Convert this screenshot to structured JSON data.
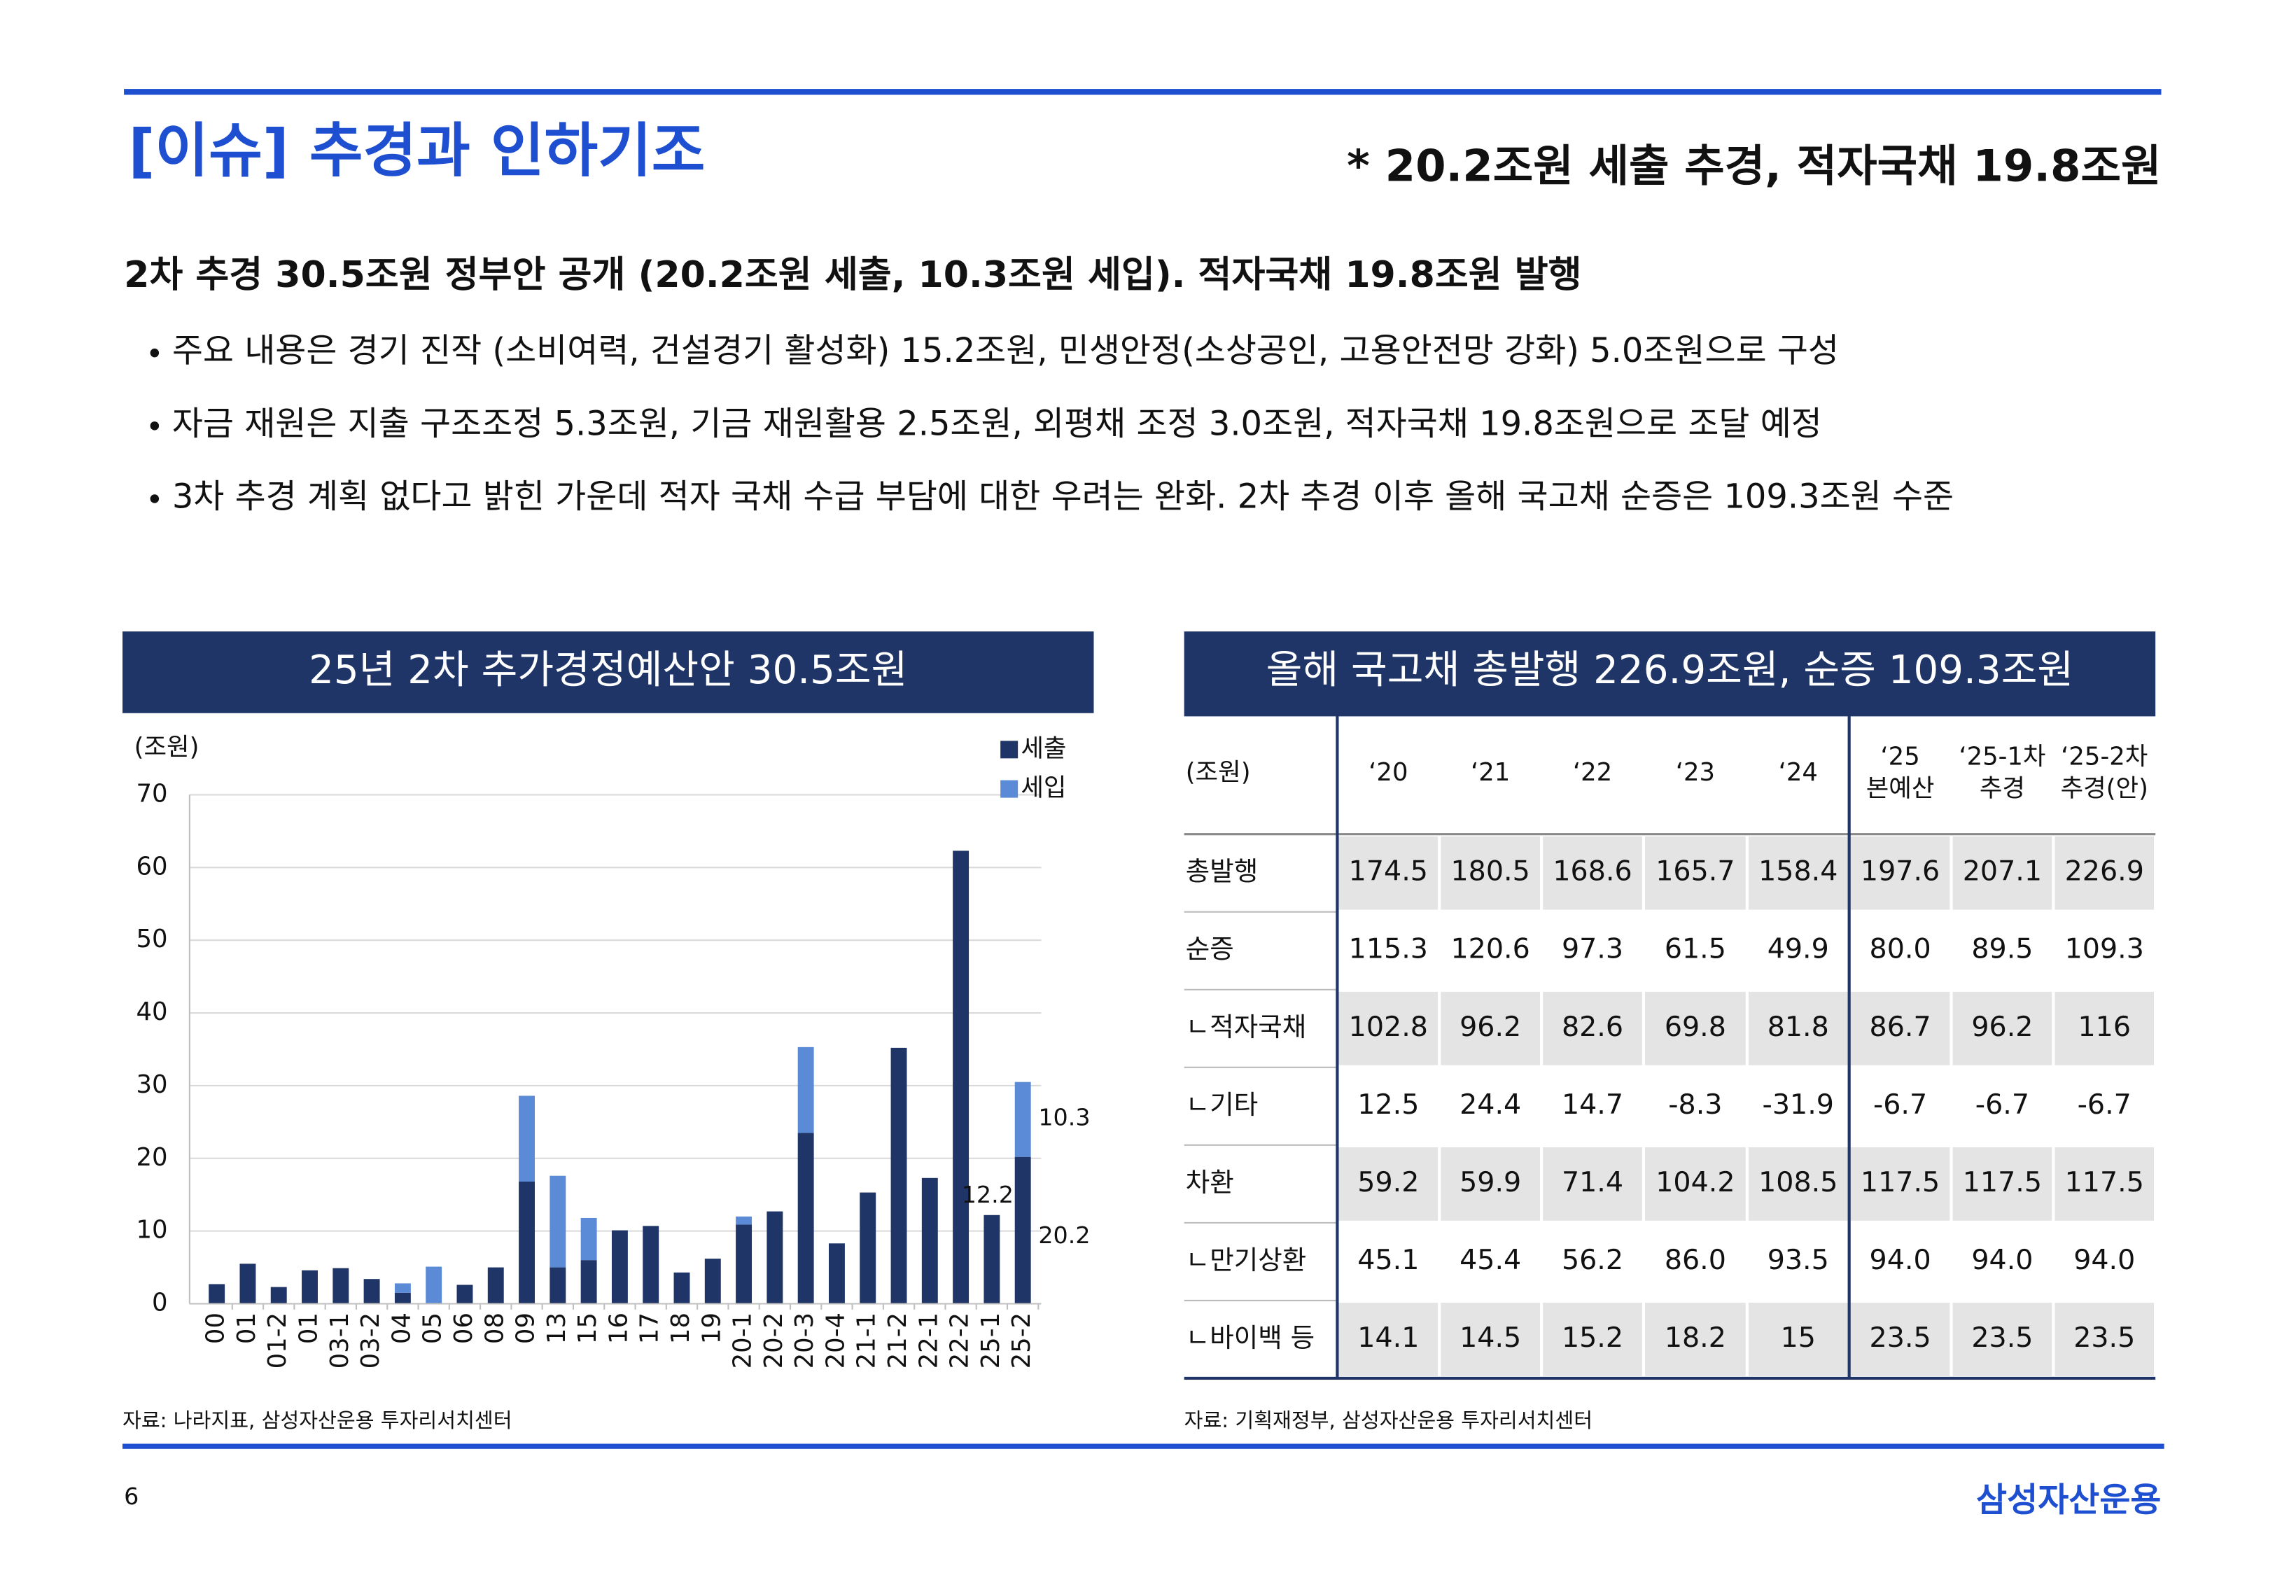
{
  "header": {
    "title": "[이슈] 추경과 인하기조",
    "note": "* 20.2조원 세출 추경, 적자국채 19.8조원"
  },
  "headline": "2차 추경 30.5조원 정부안 공개 (20.2조원 세출, 10.3조원 세입). 적자국채 19.8조원 발행",
  "bullets": [
    "주요 내용은 경기 진작 (소비여력, 건설경기 활성화) 15.2조원, 민생안정(소상공인, 고용안전망 강화) 5.0조원으로 구성",
    "자금 재원은 지출 구조조정 5.3조원, 기금 재원활용 2.5조원, 외평채 조정 3.0조원, 적자국채 19.8조원으로 조달 예정",
    "3차 추경 계획 없다고 밝힌 가운데 적자 국채 수급 부담에 대한 우려는 완화. 2차 추경 이후 올해 국고채 순증은 109.3조원 수준"
  ],
  "chart_data": {
    "type": "bar",
    "stacked": true,
    "title": "25년 2차 추가경정예산안 30.5조원",
    "y_label": "(조원)",
    "categories": [
      "00",
      "01",
      "01-2",
      "01",
      "03-1",
      "03-2",
      "04",
      "05",
      "06",
      "08",
      "09",
      "13",
      "15",
      "16",
      "17",
      "18",
      "19",
      "20-1",
      "20-2",
      "20-3",
      "20-4",
      "21-1",
      "21-2",
      "22-1",
      "22-2",
      "25-1",
      "25-2"
    ],
    "series": [
      {
        "name": "세출",
        "color": "#1f3467",
        "values": [
          2.7,
          5.5,
          2.3,
          4.6,
          4.9,
          3.4,
          1.5,
          0,
          2.6,
          5.0,
          16.8,
          5.0,
          6.0,
          10.1,
          10.7,
          4.3,
          6.2,
          10.9,
          12.7,
          23.5,
          8.3,
          15.3,
          35.2,
          17.3,
          62.3,
          12.2,
          20.2
        ]
      },
      {
        "name": "세입",
        "color": "#5b8ad6",
        "values": [
          0,
          0,
          0,
          0,
          0,
          0,
          1.3,
          5.1,
          0,
          0,
          11.8,
          12.6,
          5.8,
          0,
          0,
          0,
          0,
          1.1,
          0,
          11.8,
          0,
          0,
          0,
          0,
          0,
          0,
          10.3
        ]
      }
    ],
    "ylim": [
      0,
      70
    ],
    "yticks": [
      0,
      10,
      20,
      30,
      40,
      50,
      60,
      70
    ],
    "grid": true,
    "legend": "upper right",
    "source": "자료: 나라지표, 삼성자산운용 투자리서치센터"
  },
  "table": {
    "title": "올해 국고채 총발행 226.9조원, 순증 109.3조원",
    "header": [
      [
        "(조원)"
      ],
      [
        "‘20"
      ],
      [
        "‘21"
      ],
      [
        "‘22"
      ],
      [
        "‘23"
      ],
      [
        "‘24"
      ],
      [
        "‘25",
        "본예산"
      ],
      [
        "‘25-1차",
        "추경"
      ],
      [
        "‘25-2차",
        "추경(안)"
      ]
    ],
    "rows": [
      [
        "총발행",
        "174.5",
        "180.5",
        "168.6",
        "165.7",
        "158.4",
        "197.6",
        "207.1",
        "226.9"
      ],
      [
        "순증",
        "115.3",
        "120.6",
        "97.3",
        "61.5",
        "49.9",
        "80.0",
        "89.5",
        "109.3"
      ],
      [
        "ㄴ적자국채",
        "102.8",
        "96.2",
        "82.6",
        "69.8",
        "81.8",
        "86.7",
        "96.2",
        "116"
      ],
      [
        "ㄴ기타",
        "12.5",
        "24.4",
        "14.7",
        "-8.3",
        "-31.9",
        "-6.7",
        "-6.7",
        "-6.7"
      ],
      [
        "차환",
        "59.2",
        "59.9",
        "71.4",
        "104.2",
        "108.5",
        "117.5",
        "117.5",
        "117.5"
      ],
      [
        "ㄴ만기상환",
        "45.1",
        "45.4",
        "56.2",
        "86.0",
        "93.5",
        "94.0",
        "94.0",
        "94.0"
      ],
      [
        "ㄴ바이백 등",
        "14.1",
        "14.5",
        "15.2",
        "18.2",
        "15",
        "23.5",
        "23.5",
        "23.5"
      ]
    ],
    "source": "자료: 기획재정부, 삼성자산운용 투자리서치센터"
  },
  "footer": {
    "page": "6",
    "logo": "삼성자산운용"
  }
}
